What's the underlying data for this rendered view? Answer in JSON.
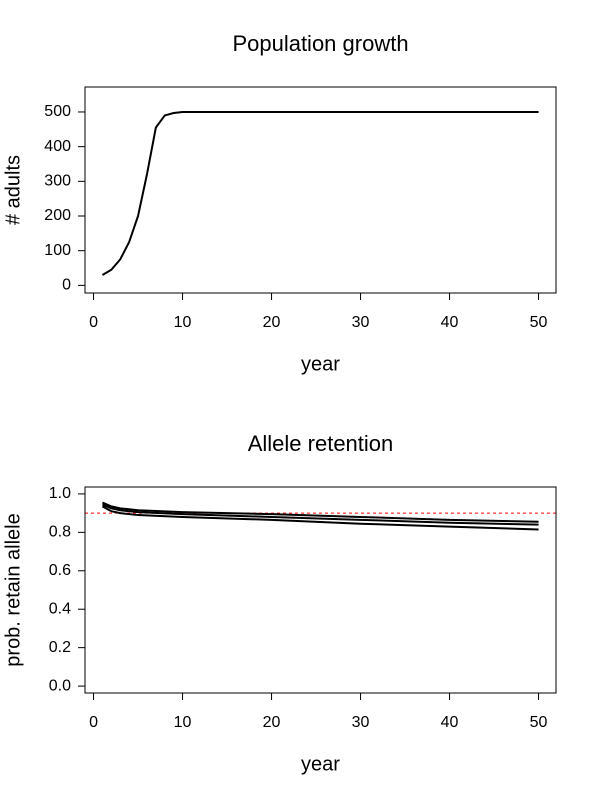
{
  "chart_data": [
    {
      "type": "line",
      "title": "Population growth",
      "xlabel": "year",
      "ylabel": "# adults",
      "x": [
        1,
        2,
        3,
        4,
        5,
        6,
        7,
        8,
        9,
        10,
        11,
        12,
        13,
        14,
        15,
        16,
        17,
        18,
        19,
        20,
        21,
        22,
        23,
        24,
        25,
        26,
        27,
        28,
        29,
        30,
        31,
        32,
        33,
        34,
        35,
        36,
        37,
        38,
        39,
        40,
        41,
        42,
        43,
        44,
        45,
        46,
        47,
        48,
        49,
        50
      ],
      "series": [
        {
          "color": "#000000",
          "values": [
            30,
            45,
            75,
            125,
            200,
            320,
            455,
            490,
            497,
            500,
            500,
            500,
            500,
            500,
            500,
            500,
            500,
            500,
            500,
            500,
            500,
            500,
            500,
            500,
            500,
            500,
            500,
            500,
            500,
            500,
            500,
            500,
            500,
            500,
            500,
            500,
            500,
            500,
            500,
            500,
            500,
            500,
            500,
            500,
            500,
            500,
            500,
            500,
            500,
            500
          ]
        }
      ],
      "xlim": [
        -0.96,
        51.96
      ],
      "xticks": [
        0,
        10,
        20,
        30,
        40,
        50
      ],
      "ylim": [
        -22,
        572
      ],
      "yticks": [
        0,
        100,
        200,
        300,
        400,
        500
      ]
    },
    {
      "type": "line",
      "title": "Allele retention",
      "xlabel": "year",
      "ylabel": "prob. retain allele",
      "x": [
        1,
        2,
        3,
        5,
        10,
        20,
        30,
        40,
        50
      ],
      "series": [
        {
          "color": "#000000",
          "values": [
            0.955,
            0.935,
            0.925,
            0.915,
            0.905,
            0.895,
            0.88,
            0.865,
            0.855
          ]
        },
        {
          "color": "#000000",
          "values": [
            0.945,
            0.925,
            0.915,
            0.905,
            0.895,
            0.88,
            0.865,
            0.85,
            0.84
          ]
        },
        {
          "color": "#000000",
          "values": [
            0.935,
            0.91,
            0.9,
            0.89,
            0.88,
            0.865,
            0.845,
            0.83,
            0.815
          ]
        }
      ],
      "reference_line": {
        "value": 0.9,
        "color": "#ff0000",
        "style": "dashed"
      },
      "xlim": [
        -0.96,
        51.96
      ],
      "xticks": [
        0,
        10,
        20,
        30,
        40,
        50
      ],
      "ylim": [
        -0.036,
        1.036
      ],
      "yticks": [
        {
          "value": 0,
          "label": "0.0"
        },
        0.2,
        0.4,
        0.6,
        0.8,
        {
          "value": 1,
          "label": "1.0"
        }
      ]
    }
  ]
}
